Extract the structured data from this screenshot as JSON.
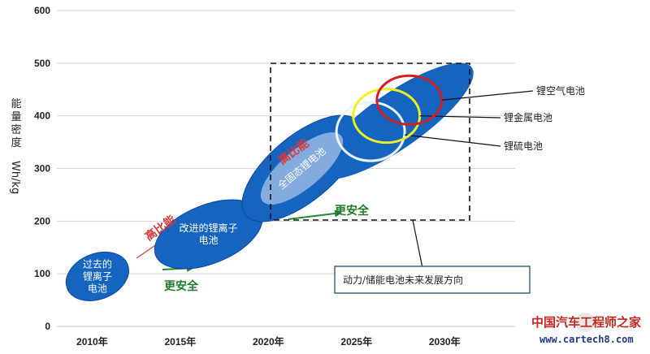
{
  "chart_data": {
    "type": "scatter",
    "y_ticks": [
      "0",
      "100",
      "200",
      "300",
      "400",
      "500",
      "600"
    ],
    "ylim": [
      0,
      600
    ],
    "x_ticks": [
      "2010年",
      "2015年",
      "2020年",
      "2025年",
      "2030年"
    ],
    "xlim": [
      2008,
      2034
    ],
    "ylabel": "能量密度 Wh/kg",
    "grid": "horizontal",
    "eras": [
      {
        "label_lines": [
          "过去的",
          "锂离子",
          "电池"
        ],
        "year": 2010.3,
        "value": 95
      },
      {
        "label_lines": [
          "改进的锂离子",
          "电池"
        ],
        "year": 2016.6,
        "value": 175
      },
      {
        "label_lines": [
          "全固态锂电池"
        ],
        "year": 2021.9,
        "value": 300
      }
    ],
    "future_technologies": [
      {
        "label": "锂硫电池",
        "year": 2025.8,
        "value": 370
      },
      {
        "label": "锂金属电池",
        "year": 2026.7,
        "value": 400
      },
      {
        "label": "锂空气电池",
        "year": 2028.0,
        "value": 430
      }
    ],
    "annotations": {
      "high_energy": "高比能",
      "safer": "更安全",
      "future_box": "动力/储能电池未来发展方向"
    }
  },
  "watermark": {
    "cn": "中国汽车工程师之家",
    "url": "www.cartech8.com"
  },
  "colors": {
    "blob": "#1565c0",
    "blob_light": "#8fb3e0",
    "red_arrow": "#d63a3a",
    "green_arrow": "#1f8a30",
    "air_circle": "#d21f1f",
    "metal_circle": "#f0f020",
    "sulfur_circle": "#e8f4ff",
    "box_border": "#2f5f6f"
  }
}
